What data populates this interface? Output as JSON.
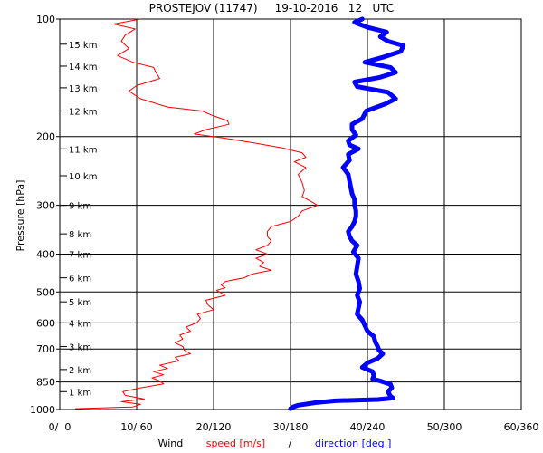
{
  "chart_data": {
    "type": "line",
    "title": "PROSTEJOV (11747)     19-10-2016   12   UTC",
    "ylabel": "Pressure [hPa]",
    "xlabel_parts": {
      "prefix": "Wind",
      "speed": "speed [m/s]",
      "separator": "/",
      "direction": "direction [deg.]"
    },
    "y_scale": "log",
    "ylim": [
      1000,
      100
    ],
    "y_ticks": [
      100,
      200,
      300,
      400,
      500,
      600,
      700,
      850,
      1000
    ],
    "y_tick_labels": [
      "100",
      "200",
      "300",
      "400",
      "500",
      "600",
      "700",
      "850",
      "1000"
    ],
    "xlim_speed": [
      0,
      60
    ],
    "xlim_direction": [
      0,
      360
    ],
    "x_tick_labels": [
      "0/  0",
      "10/ 60",
      "20/120",
      "30/180",
      "40/240",
      "50/300",
      "60/360"
    ],
    "grid": true,
    "height_labels": [
      {
        "label": "15 km",
        "p": 116
      },
      {
        "label": "14 km",
        "p": 132
      },
      {
        "label": "13 km",
        "p": 150
      },
      {
        "label": "12 km",
        "p": 172
      },
      {
        "label": "11 km",
        "p": 215
      },
      {
        "label": "10 km",
        "p": 252
      },
      {
        "label": "9 km",
        "p": 300
      },
      {
        "label": "8 km",
        "p": 355
      },
      {
        "label": "7 km",
        "p": 400
      },
      {
        "label": "6 km",
        "p": 460
      },
      {
        "label": "5 km",
        "p": 530
      },
      {
        "label": "4 km",
        "p": 600
      },
      {
        "label": "3 km",
        "p": 690
      },
      {
        "label": "2 km",
        "p": 790
      },
      {
        "label": "1 km",
        "p": 900
      }
    ],
    "colors": {
      "speed": "#ff0000",
      "direction": "#0000ff",
      "grid": "#000000"
    },
    "series": [
      {
        "name": "speed [m/s]",
        "unit": "m/s",
        "points": [
          [
            995,
            2.0
          ],
          [
            985,
            9.5
          ],
          [
            970,
            10.5
          ],
          [
            955,
            8.0
          ],
          [
            940,
            11.0
          ],
          [
            920,
            8.5
          ],
          [
            900,
            8.2
          ],
          [
            880,
            10.5
          ],
          [
            860,
            13.5
          ],
          [
            845,
            13.0
          ],
          [
            830,
            12.0
          ],
          [
            815,
            13.5
          ],
          [
            800,
            12.2
          ],
          [
            785,
            14.0
          ],
          [
            770,
            13.0
          ],
          [
            750,
            15.5
          ],
          [
            735,
            15.0
          ],
          [
            720,
            17.0
          ],
          [
            705,
            16.2
          ],
          [
            690,
            16.0
          ],
          [
            675,
            15.0
          ],
          [
            660,
            16.0
          ],
          [
            645,
            15.6
          ],
          [
            630,
            17.0
          ],
          [
            615,
            16.4
          ],
          [
            600,
            17.8
          ],
          [
            585,
            18.3
          ],
          [
            570,
            17.9
          ],
          [
            555,
            20.0
          ],
          [
            540,
            19.3
          ],
          [
            525,
            19.0
          ],
          [
            510,
            21.5
          ],
          [
            495,
            20.4
          ],
          [
            488,
            21.5
          ],
          [
            480,
            21.0
          ],
          [
            470,
            21.5
          ],
          [
            460,
            24.0
          ],
          [
            450,
            25.0
          ],
          [
            440,
            27.5
          ],
          [
            430,
            26.0
          ],
          [
            420,
            26.5
          ],
          [
            410,
            25.5
          ],
          [
            400,
            27.0
          ],
          [
            390,
            25.5
          ],
          [
            380,
            27.0
          ],
          [
            370,
            27.5
          ],
          [
            360,
            27.0
          ],
          [
            350,
            27.0
          ],
          [
            340,
            27.5
          ],
          [
            330,
            30.0
          ],
          [
            320,
            31.0
          ],
          [
            310,
            31.5
          ],
          [
            300,
            33.5
          ],
          [
            292,
            32.5
          ],
          [
            285,
            31.5
          ],
          [
            275,
            31.8
          ],
          [
            262,
            31.5
          ],
          [
            250,
            31.0
          ],
          [
            240,
            32.0
          ],
          [
            232,
            30.5
          ],
          [
            226,
            32.0
          ],
          [
            220,
            31.5
          ],
          [
            214,
            29.0
          ],
          [
            208,
            25.5
          ],
          [
            202,
            21.5
          ],
          [
            197,
            17.5
          ],
          [
            192,
            19.0
          ],
          [
            186,
            22.0
          ],
          [
            182,
            21.8
          ],
          [
            177,
            20.0
          ],
          [
            172,
            18.5
          ],
          [
            168,
            14.0
          ],
          [
            160,
            10.5
          ],
          [
            153,
            9.0
          ],
          [
            148,
            10.0
          ],
          [
            142,
            13.0
          ],
          [
            137,
            12.5
          ],
          [
            133,
            12.2
          ],
          [
            129,
            9.5
          ],
          [
            124,
            7.5
          ],
          [
            119,
            9.0
          ],
          [
            114,
            8.0
          ],
          [
            110,
            8.5
          ],
          [
            106,
            9.8
          ],
          [
            103,
            7.0
          ],
          [
            100,
            10.5
          ]
        ]
      },
      {
        "name": "direction [deg.]",
        "unit": "deg",
        "points": [
          [
            995,
            180
          ],
          [
            985,
            182
          ],
          [
            975,
            186
          ],
          [
            960,
            200
          ],
          [
            950,
            215
          ],
          [
            943,
            248
          ],
          [
            935,
            260
          ],
          [
            925,
            258
          ],
          [
            900,
            256
          ],
          [
            880,
            259
          ],
          [
            862,
            258
          ],
          [
            845,
            250
          ],
          [
            835,
            244
          ],
          [
            820,
            245
          ],
          [
            800,
            244
          ],
          [
            780,
            236
          ],
          [
            760,
            240
          ],
          [
            740,
            248
          ],
          [
            720,
            252
          ],
          [
            705,
            249
          ],
          [
            690,
            248
          ],
          [
            670,
            246
          ],
          [
            650,
            245
          ],
          [
            630,
            240
          ],
          [
            610,
            238
          ],
          [
            590,
            236
          ],
          [
            570,
            232
          ],
          [
            550,
            233
          ],
          [
            530,
            234
          ],
          [
            510,
            232
          ],
          [
            490,
            234
          ],
          [
            470,
            233
          ],
          [
            450,
            231
          ],
          [
            430,
            232
          ],
          [
            410,
            233
          ],
          [
            395,
            229
          ],
          [
            380,
            232
          ],
          [
            370,
            228
          ],
          [
            360,
            226
          ],
          [
            350,
            225
          ],
          [
            340,
            228
          ],
          [
            330,
            230
          ],
          [
            320,
            231
          ],
          [
            310,
            231
          ],
          [
            300,
            230
          ],
          [
            290,
            230
          ],
          [
            280,
            228
          ],
          [
            270,
            227
          ],
          [
            260,
            226
          ],
          [
            250,
            225
          ],
          [
            240,
            221
          ],
          [
            230,
            226
          ],
          [
            222,
            225
          ],
          [
            215,
            233
          ],
          [
            210,
            226
          ],
          [
            205,
            225
          ],
          [
            198,
            231
          ],
          [
            192,
            228
          ],
          [
            186,
            228
          ],
          [
            180,
            236
          ],
          [
            172,
            239
          ],
          [
            165,
            254
          ],
          [
            160,
            262
          ],
          [
            154,
            256
          ],
          [
            149,
            232
          ],
          [
            145,
            230
          ],
          [
            141,
            250
          ],
          [
            137,
            262
          ],
          [
            133,
            258
          ],
          [
            129,
            238
          ],
          [
            125,
            253
          ],
          [
            121,
            266
          ],
          [
            117,
            268
          ],
          [
            114,
            256
          ],
          [
            111,
            250
          ],
          [
            108,
            255
          ],
          [
            105,
            240
          ],
          [
            102,
            230
          ],
          [
            100,
            236
          ]
        ]
      }
    ]
  }
}
